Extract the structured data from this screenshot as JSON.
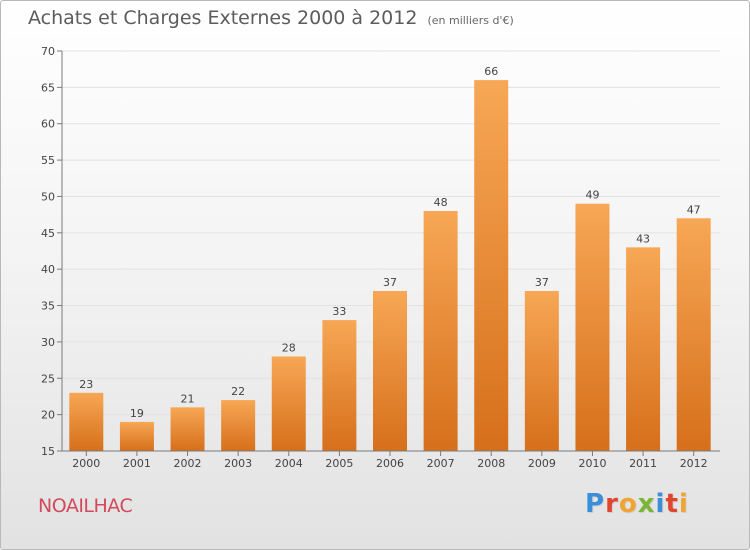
{
  "header": {
    "title": "Achats et Charges Externes 2000 à 2012",
    "subtitle": "(en milliers d'€)"
  },
  "footer": {
    "commune": "NOAILHAC",
    "logo_letters": [
      "P",
      "r",
      "o",
      "x",
      "i",
      "t",
      "i"
    ],
    "logo_colors": [
      "#3b8fd9",
      "#e0452e",
      "#f0a431",
      "#7ab535",
      "#3b8fd9",
      "#e0452e",
      "#f0a431"
    ]
  },
  "colors": {
    "bar_top": "#f7a755",
    "bar_bottom": "#d66f1b",
    "grid": "#e2e2e2",
    "axis": "#7a7a7a",
    "text": "#444444"
  },
  "chart_data": {
    "type": "bar",
    "title": "Achats et Charges Externes 2000 à 2012",
    "subtitle": "(en milliers d'€)",
    "categories": [
      "2000",
      "2001",
      "2002",
      "2003",
      "2004",
      "2005",
      "2006",
      "2007",
      "2008",
      "2009",
      "2010",
      "2011",
      "2012"
    ],
    "values": [
      23,
      19,
      21,
      22,
      28,
      33,
      37,
      48,
      66,
      37,
      49,
      43,
      47
    ],
    "ylim": [
      15,
      70
    ],
    "yticks": [
      15,
      20,
      25,
      30,
      35,
      40,
      45,
      50,
      55,
      60,
      65,
      70
    ],
    "grid": true,
    "data_labels": true,
    "xlabel": "",
    "ylabel": ""
  }
}
